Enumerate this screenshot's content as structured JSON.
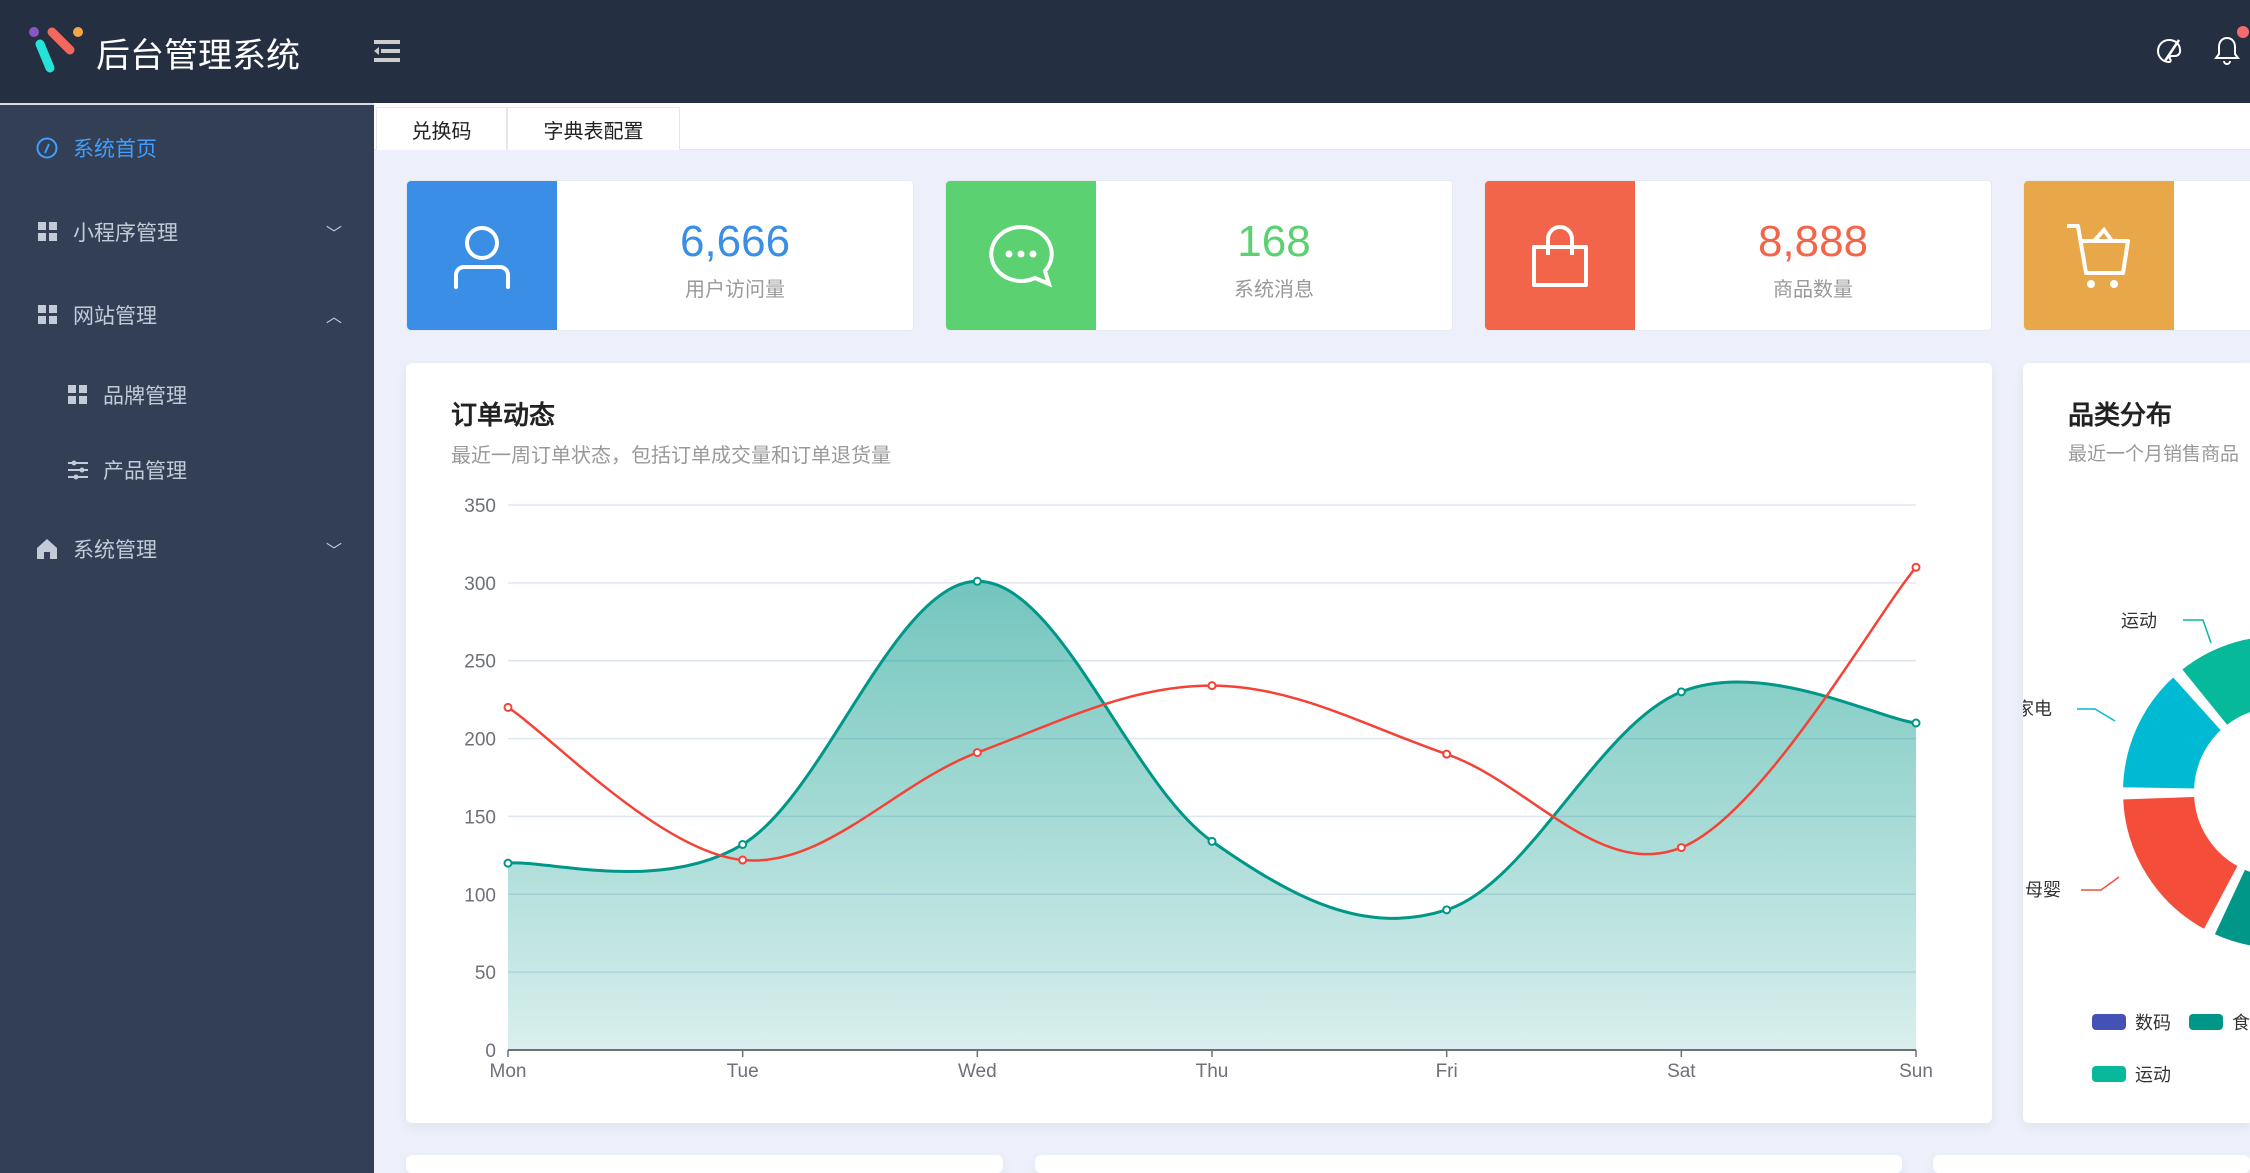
{
  "header": {
    "title": "后台管理系统",
    "icons": [
      "logo",
      "menu-fold-icon",
      "palette-icon",
      "bell-icon"
    ],
    "notification_dot": true,
    "bg": "#252f42"
  },
  "sidebar": {
    "items": [
      {
        "label": "系统首页",
        "icon": "dashboard-icon",
        "active": true
      },
      {
        "label": "小程序管理",
        "icon": "grid-icon",
        "expanded": false
      },
      {
        "label": "网站管理",
        "icon": "grid-icon",
        "expanded": true
      },
      {
        "label": "品牌管理",
        "icon": "grid-icon",
        "sub": true
      },
      {
        "label": "产品管理",
        "icon": "sliders-icon",
        "sub": true
      },
      {
        "label": "系统管理",
        "icon": "home-icon",
        "expanded": false
      }
    ],
    "accent": "#409eff"
  },
  "tabs": [
    {
      "label": "兑换码"
    },
    {
      "label": "字典表配置"
    }
  ],
  "stats": [
    {
      "value": "6,666",
      "label": "用户访问量",
      "color": "#3a8ee6",
      "icon": "user-icon"
    },
    {
      "value": "168",
      "label": "系统消息",
      "color": "#5bd171",
      "icon": "message-icon"
    },
    {
      "value": "8,888",
      "label": "商品数量",
      "color": "#f2654a",
      "icon": "bag-icon"
    },
    {
      "value": "",
      "label": "",
      "color": "#e8a849",
      "icon": "cart-icon"
    }
  ],
  "order_card": {
    "title": "订单动态",
    "subtitle": "最近一周订单状态，包括订单成交量和订单退货量"
  },
  "category_card": {
    "title": "品类分布",
    "subtitle": "最近一个月销售商品"
  },
  "chart_data": [
    {
      "type": "line",
      "categories": [
        "Mon",
        "Tue",
        "Wed",
        "Thu",
        "Fri",
        "Sat",
        "Sun"
      ],
      "ylim": [
        0,
        350
      ],
      "yticks": [
        0,
        50,
        100,
        150,
        200,
        250,
        300,
        350
      ],
      "grid": true,
      "smooth": true,
      "series": [
        {
          "values": [
            120,
            132,
            301,
            134,
            90,
            230,
            210
          ],
          "color": "#009688",
          "area": true
        },
        {
          "values": [
            220,
            122,
            191,
            234,
            190,
            130,
            310
          ],
          "color": "#f44336",
          "area": false
        }
      ]
    },
    {
      "type": "pie",
      "donut": true,
      "labels": [
        {
          "name": "运动",
          "color": "#07b99b"
        },
        {
          "name": "家电",
          "color": "#00bad4"
        },
        {
          "name": "母婴",
          "color": "#f44e3b"
        }
      ],
      "legend": [
        {
          "name": "数码",
          "color": "#4552b5"
        },
        {
          "name": "食品",
          "color": "#009688"
        },
        {
          "name": "运动",
          "color": "#07b99b"
        }
      ],
      "legend_position": "bottom"
    }
  ]
}
